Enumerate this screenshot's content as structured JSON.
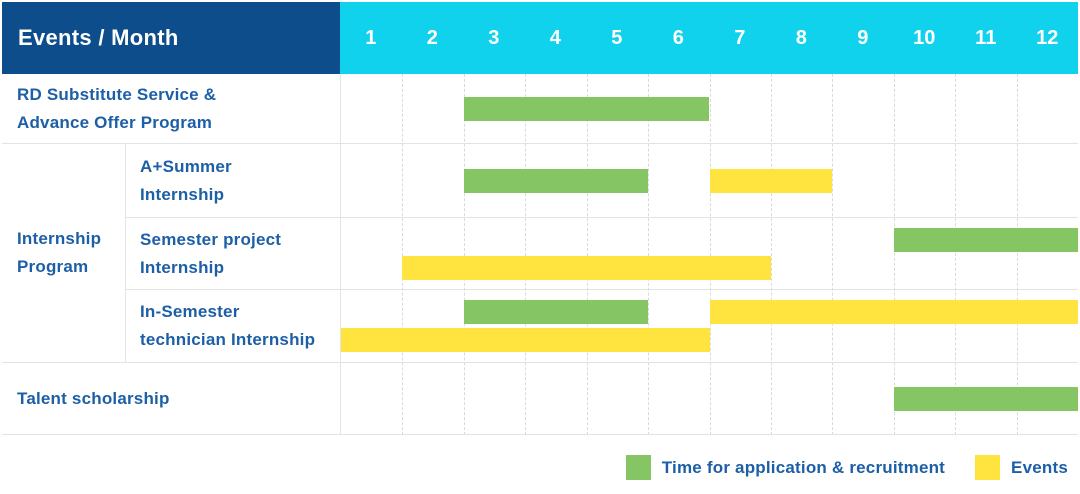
{
  "header": {
    "title": "Events / Month",
    "months": [
      "1",
      "2",
      "3",
      "4",
      "5",
      "6",
      "7",
      "8",
      "9",
      "10",
      "11",
      "12"
    ]
  },
  "table": {
    "group_label_lines": [
      "Internship",
      "Program"
    ]
  },
  "chart_data": {
    "type": "gantt",
    "x_axis_label": "Month",
    "x_ticks": [
      "1",
      "2",
      "3",
      "4",
      "5",
      "6",
      "7",
      "8",
      "9",
      "10",
      "11",
      "12"
    ],
    "rows": [
      {
        "group": "",
        "label_lines": [
          "RD Substitute Service &",
          "Advance Offer Program"
        ],
        "bars": [
          {
            "type": "recruitment",
            "start_month": 3,
            "end_month": 6,
            "lane": "center"
          }
        ]
      },
      {
        "group": "Internship Program",
        "label_lines": [
          "A+Summer",
          "Internship"
        ],
        "bars": [
          {
            "type": "recruitment",
            "start_month": 3,
            "end_month": 5,
            "lane": "center"
          },
          {
            "type": "event",
            "start_month": 7,
            "end_month": 8,
            "lane": "center"
          }
        ]
      },
      {
        "group": "Internship Program",
        "label_lines": [
          "Semester project",
          "Internship"
        ],
        "bars": [
          {
            "type": "recruitment",
            "start_month": 10,
            "end_month": 12,
            "lane": "top"
          },
          {
            "type": "event",
            "start_month": 2,
            "end_month": 7,
            "lane": "bottom"
          }
        ]
      },
      {
        "group": "Internship Program",
        "label_lines": [
          "In-Semester",
          "technician Internship"
        ],
        "bars": [
          {
            "type": "recruitment",
            "start_month": 3,
            "end_month": 5,
            "lane": "top"
          },
          {
            "type": "event",
            "start_month": 7,
            "end_month": 12,
            "lane": "top"
          },
          {
            "type": "event",
            "start_month": 1,
            "end_month": 6,
            "lane": "bottom"
          }
        ]
      },
      {
        "group": "",
        "label_lines": [
          "Talent scholarship"
        ],
        "bars": [
          {
            "type": "recruitment",
            "start_month": 10,
            "end_month": 12,
            "lane": "center"
          }
        ]
      }
    ]
  },
  "legend": {
    "items": [
      {
        "type": "recruitment",
        "label": "Time for application & recruitment"
      },
      {
        "type": "event",
        "label": "Events"
      }
    ]
  },
  "colors": {
    "header_bg": "#0e4d8c",
    "month_header_bg": "#10d2ec",
    "label_text": "#1d5fa6",
    "recruitment": "#85c563",
    "event": "#ffe33e",
    "grid_border": "#e3e3e3",
    "grid_dash": "#d9d9d9"
  }
}
